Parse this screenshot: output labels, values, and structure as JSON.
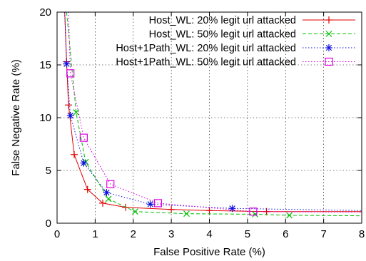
{
  "chart_data": {
    "type": "line",
    "title": "",
    "xlabel": "False Positive Rate (%)",
    "ylabel": "False Negative Rate (%)",
    "xlim": [
      0,
      8
    ],
    "ylim": [
      0,
      20
    ],
    "xticks": [
      "0",
      "1",
      "2",
      "3",
      "4",
      "5",
      "6",
      "7",
      "8"
    ],
    "yticks": [
      "0",
      "5",
      "10",
      "15",
      "20"
    ],
    "grid": true,
    "legend_position": "top-right",
    "series": [
      {
        "name": "Host_WL: 20% legit url attacked",
        "color": "#e00000",
        "dash": "solid",
        "marker": "plus",
        "points": [
          [
            0.2,
            20.0
          ],
          [
            0.25,
            15.3
          ],
          [
            0.3,
            11.2
          ],
          [
            0.45,
            6.5
          ],
          [
            0.8,
            3.2
          ],
          [
            1.2,
            1.9
          ],
          [
            1.8,
            1.5
          ],
          [
            3.0,
            1.3
          ],
          [
            4.0,
            1.2
          ],
          [
            5.5,
            1.1
          ],
          [
            8.0,
            1.1
          ]
        ]
      },
      {
        "name": "Host_WL: 50% legit url attacked",
        "color": "#00c000",
        "dash": "dashed",
        "marker": "x",
        "points": [
          [
            0.25,
            20.0
          ],
          [
            0.5,
            10.5
          ],
          [
            0.75,
            5.8
          ],
          [
            1.35,
            2.3
          ],
          [
            2.05,
            1.1
          ],
          [
            3.4,
            0.9
          ],
          [
            5.2,
            0.85
          ],
          [
            6.1,
            0.75
          ],
          [
            8.0,
            0.7
          ]
        ]
      },
      {
        "name": "Host+1Path_WL: 20% legit url attacked",
        "color": "#1010e0",
        "dash": "dotted",
        "marker": "star",
        "points": [
          [
            0.2,
            20.0
          ],
          [
            0.25,
            15.1
          ],
          [
            0.35,
            10.2
          ],
          [
            0.7,
            5.7
          ],
          [
            1.3,
            2.9
          ],
          [
            2.45,
            1.8
          ],
          [
            4.6,
            1.4
          ],
          [
            8.0,
            1.2
          ]
        ]
      },
      {
        "name": "Host+1Path_WL: 50% legit url attacked",
        "color": "#e000e0",
        "dash": "dotted",
        "marker": "square",
        "points": [
          [
            0.3,
            20.0
          ],
          [
            0.35,
            14.2
          ],
          [
            0.7,
            8.1
          ],
          [
            1.4,
            3.7
          ],
          [
            2.65,
            1.9
          ],
          [
            5.15,
            1.1
          ],
          [
            8.0,
            1.05
          ]
        ]
      }
    ]
  }
}
